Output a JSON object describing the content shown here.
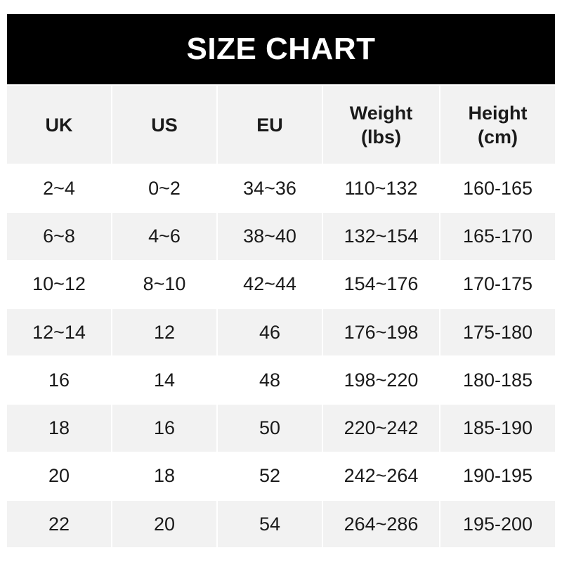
{
  "title": "SIZE CHART",
  "headers": [
    "UK",
    "US",
    "EU",
    "Weight\n(lbs)",
    "Height\n(cm)"
  ],
  "rows": [
    [
      "2~4",
      "0~2",
      "34~36",
      "110~132",
      "160-165"
    ],
    [
      "6~8",
      "4~6",
      "38~40",
      "132~154",
      "165-170"
    ],
    [
      "10~12",
      "8~10",
      "42~44",
      "154~176",
      "170-175"
    ],
    [
      "12~14",
      "12",
      "46",
      "176~198",
      "175-180"
    ],
    [
      "16",
      "14",
      "48",
      "198~220",
      "180-185"
    ],
    [
      "18",
      "16",
      "50",
      "220~242",
      "185-190"
    ],
    [
      "20",
      "18",
      "52",
      "242~264",
      "190-195"
    ],
    [
      "22",
      "20",
      "54",
      "264~286",
      "195-200"
    ]
  ],
  "colors": {
    "title_bg": "#000000",
    "title_text": "#ffffff",
    "stripe": "#f2f2f2"
  }
}
